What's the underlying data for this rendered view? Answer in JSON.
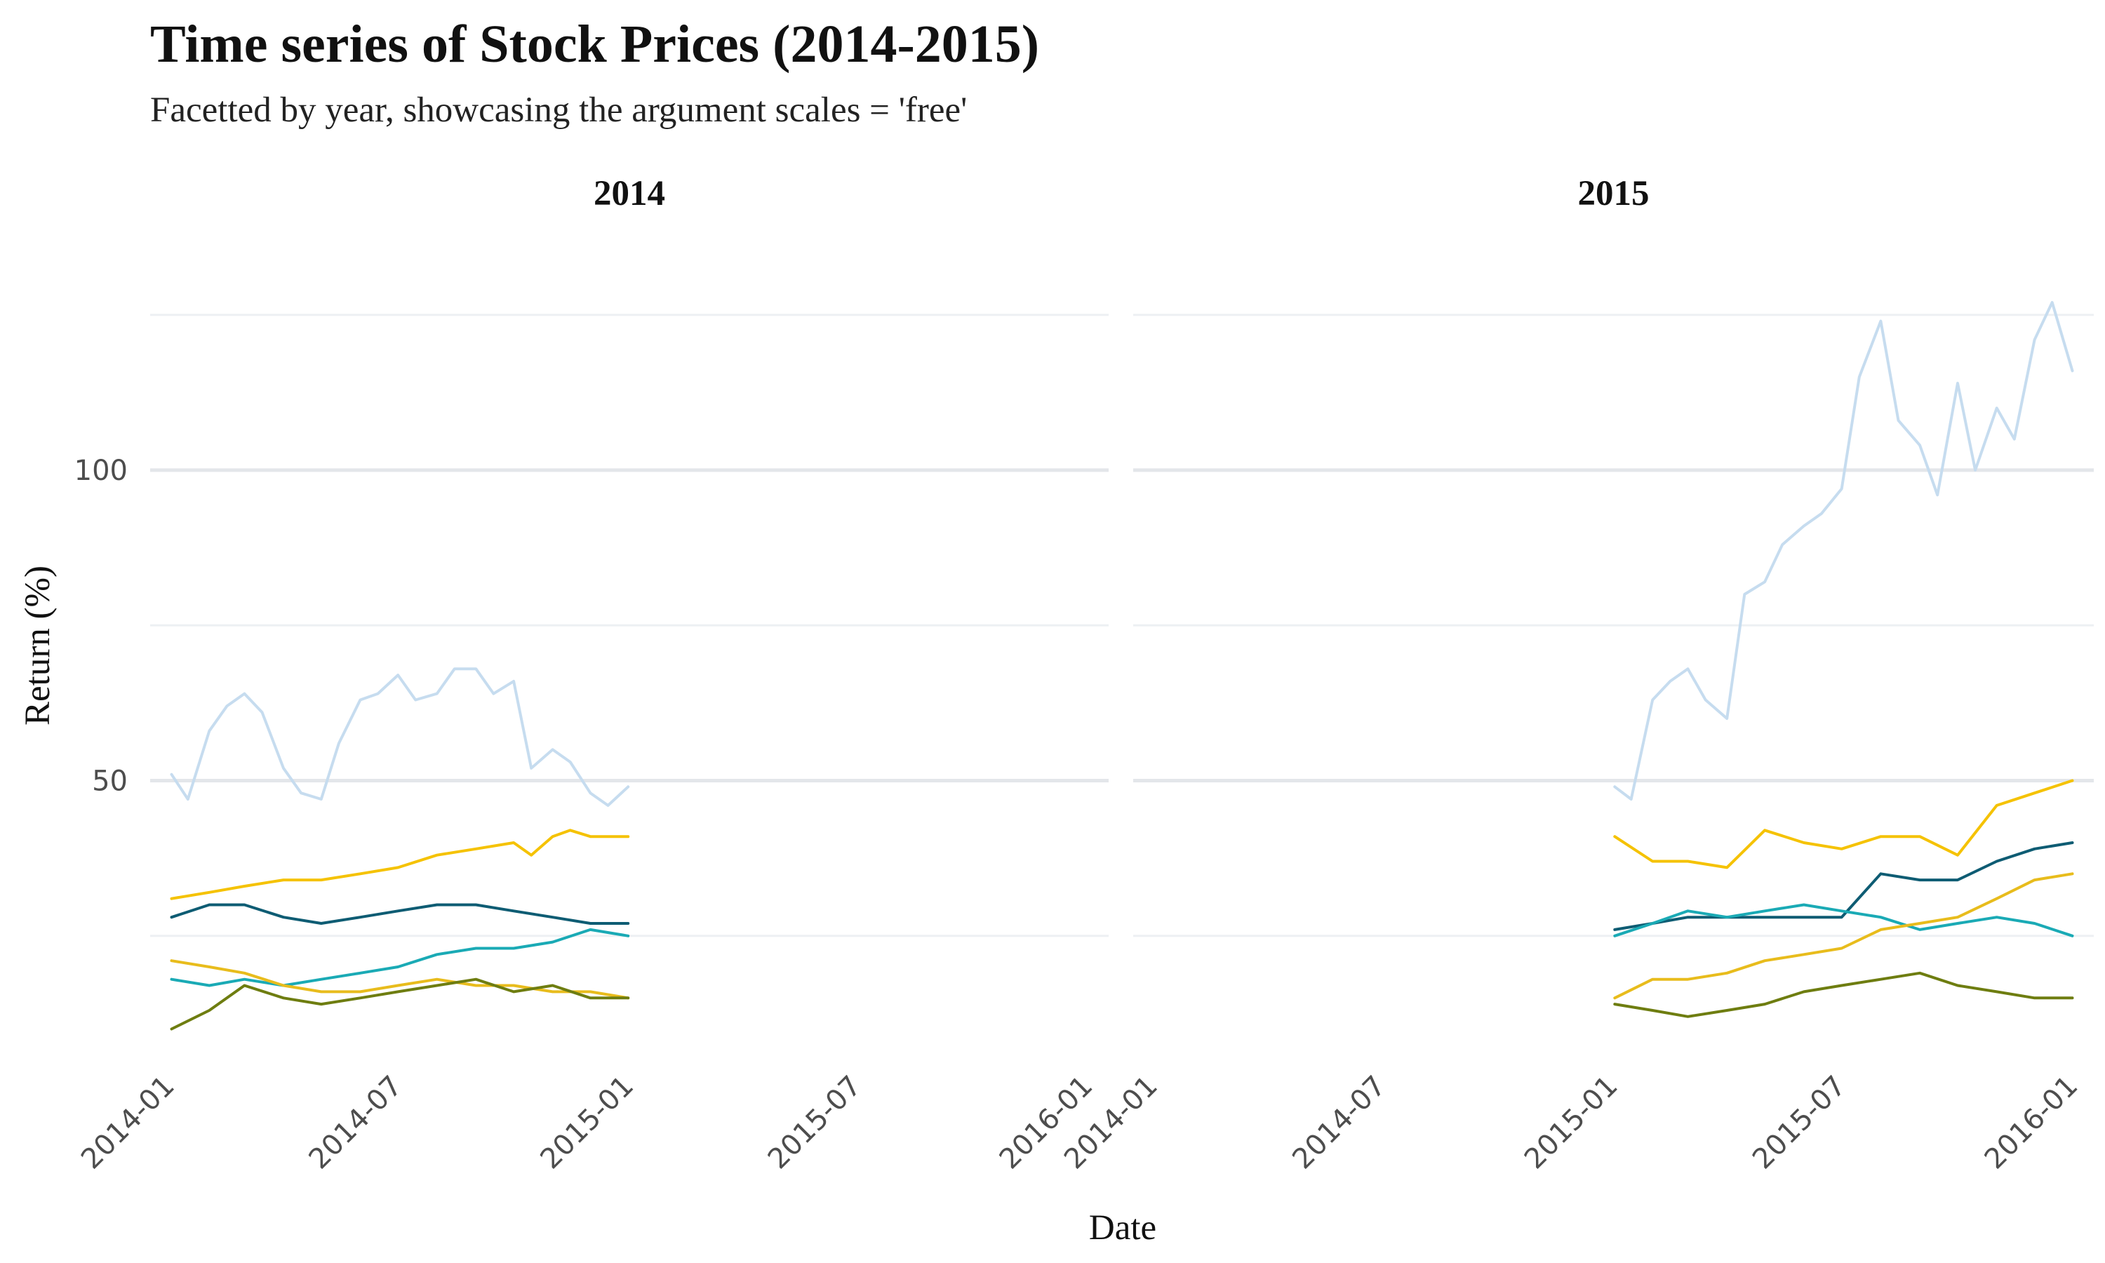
{
  "chart_data": {
    "type": "line",
    "title": "Time series of Stock Prices (2014-2015)",
    "subtitle": "Facetted by year, showcasing the argument scales = 'free'",
    "xlabel": "Date",
    "ylabel": "Return (%)",
    "ylim": [
      0,
      130
    ],
    "y_ticks": [
      50,
      100
    ],
    "grid": true,
    "legend": "none",
    "x_ticks": [
      "2014-01",
      "2014-07",
      "2015-01",
      "2015-07",
      "2016-01"
    ],
    "facets": [
      {
        "label": "2014",
        "series": [
          {
            "color": "#c6dcef",
            "x": [
              "2014-01-02",
              "2014-01-15",
              "2014-02-01",
              "2014-02-15",
              "2014-03-01",
              "2014-03-15",
              "2014-04-01",
              "2014-04-15",
              "2014-05-01",
              "2014-05-15",
              "2014-06-01",
              "2014-06-15",
              "2014-07-01",
              "2014-07-15",
              "2014-08-01",
              "2014-08-15",
              "2014-09-01",
              "2014-09-15",
              "2014-10-01",
              "2014-10-15",
              "2014-11-01",
              "2014-11-15",
              "2014-12-01",
              "2014-12-15",
              "2014-12-31"
            ],
            "y": [
              51,
              47,
              58,
              62,
              64,
              61,
              52,
              48,
              47,
              56,
              63,
              64,
              67,
              63,
              64,
              68,
              68,
              64,
              66,
              52,
              55,
              53,
              48,
              46,
              49
            ]
          },
          {
            "color": "#f5c200",
            "x": [
              "2014-01-02",
              "2014-02-01",
              "2014-03-01",
              "2014-04-01",
              "2014-05-01",
              "2014-06-01",
              "2014-07-01",
              "2014-08-01",
              "2014-09-01",
              "2014-10-01",
              "2014-10-15",
              "2014-11-01",
              "2014-11-15",
              "2014-12-01",
              "2014-12-15",
              "2014-12-31"
            ],
            "y": [
              31,
              32,
              33,
              34,
              34,
              35,
              36,
              38,
              39,
              40,
              38,
              41,
              42,
              41,
              41,
              41
            ]
          },
          {
            "color": "#0e5c73",
            "x": [
              "2014-01-02",
              "2014-02-01",
              "2014-03-01",
              "2014-04-01",
              "2014-05-01",
              "2014-06-01",
              "2014-07-01",
              "2014-08-01",
              "2014-09-01",
              "2014-10-01",
              "2014-11-01",
              "2014-12-01",
              "2014-12-31"
            ],
            "y": [
              28,
              30,
              30,
              28,
              27,
              28,
              29,
              30,
              30,
              29,
              28,
              27,
              27
            ]
          },
          {
            "color": "#1aaab5",
            "x": [
              "2014-01-02",
              "2014-02-01",
              "2014-03-01",
              "2014-04-01",
              "2014-05-01",
              "2014-06-01",
              "2014-07-01",
              "2014-08-01",
              "2014-09-01",
              "2014-10-01",
              "2014-11-01",
              "2014-12-01",
              "2014-12-31"
            ],
            "y": [
              18,
              17,
              18,
              17,
              18,
              19,
              20,
              22,
              23,
              23,
              24,
              26,
              25
            ]
          },
          {
            "color": "#e8bc1c",
            "x": [
              "2014-01-02",
              "2014-02-01",
              "2014-03-01",
              "2014-04-01",
              "2014-05-01",
              "2014-06-01",
              "2014-07-01",
              "2014-08-01",
              "2014-09-01",
              "2014-10-01",
              "2014-11-01",
              "2014-12-01",
              "2014-12-31"
            ],
            "y": [
              21,
              20,
              19,
              17,
              16,
              16,
              17,
              18,
              17,
              17,
              16,
              16,
              15
            ]
          },
          {
            "color": "#6e7d10",
            "x": [
              "2014-01-02",
              "2014-02-01",
              "2014-03-01",
              "2014-04-01",
              "2014-05-01",
              "2014-06-01",
              "2014-07-01",
              "2014-08-01",
              "2014-09-01",
              "2014-10-01",
              "2014-11-01",
              "2014-12-01",
              "2014-12-31"
            ],
            "y": [
              10,
              13,
              17,
              15,
              14,
              15,
              16,
              17,
              18,
              16,
              17,
              15,
              15
            ]
          }
        ]
      },
      {
        "label": "2015",
        "series": [
          {
            "color": "#c6dcef",
            "x": [
              "2015-01-02",
              "2015-01-15",
              "2015-02-01",
              "2015-02-15",
              "2015-03-01",
              "2015-03-15",
              "2015-04-01",
              "2015-04-15",
              "2015-05-01",
              "2015-05-15",
              "2015-06-01",
              "2015-06-15",
              "2015-07-01",
              "2015-07-15",
              "2015-08-01",
              "2015-08-15",
              "2015-09-01",
              "2015-09-15",
              "2015-10-01",
              "2015-10-15",
              "2015-11-01",
              "2015-11-15",
              "2015-12-01",
              "2015-12-15",
              "2015-12-31"
            ],
            "y": [
              49,
              47,
              63,
              66,
              68,
              63,
              60,
              80,
              82,
              88,
              91,
              93,
              97,
              115,
              124,
              108,
              104,
              96,
              114,
              100,
              110,
              105,
              121,
              127,
              116
            ]
          },
          {
            "color": "#f5c200",
            "x": [
              "2015-01-02",
              "2015-02-01",
              "2015-03-01",
              "2015-04-01",
              "2015-05-01",
              "2015-06-01",
              "2015-07-01",
              "2015-08-01",
              "2015-09-01",
              "2015-10-01",
              "2015-11-01",
              "2015-12-01",
              "2015-12-31"
            ],
            "y": [
              41,
              37,
              37,
              36,
              42,
              40,
              39,
              41,
              41,
              38,
              46,
              48,
              50
            ]
          },
          {
            "color": "#0e5c73",
            "x": [
              "2015-01-02",
              "2015-02-01",
              "2015-03-01",
              "2015-04-01",
              "2015-05-01",
              "2015-06-01",
              "2015-07-01",
              "2015-08-01",
              "2015-09-01",
              "2015-10-01",
              "2015-11-01",
              "2015-12-01",
              "2015-12-31"
            ],
            "y": [
              26,
              27,
              28,
              28,
              28,
              28,
              28,
              35,
              34,
              34,
              37,
              39,
              40
            ]
          },
          {
            "color": "#1aaab5",
            "x": [
              "2015-01-02",
              "2015-02-01",
              "2015-03-01",
              "2015-04-01",
              "2015-05-01",
              "2015-06-01",
              "2015-07-01",
              "2015-08-01",
              "2015-09-01",
              "2015-10-01",
              "2015-11-01",
              "2015-12-01",
              "2015-12-31"
            ],
            "y": [
              25,
              27,
              29,
              28,
              29,
              30,
              29,
              28,
              26,
              27,
              28,
              27,
              25
            ]
          },
          {
            "color": "#e8bc1c",
            "x": [
              "2015-01-02",
              "2015-02-01",
              "2015-03-01",
              "2015-04-01",
              "2015-05-01",
              "2015-06-01",
              "2015-07-01",
              "2015-08-01",
              "2015-09-01",
              "2015-10-01",
              "2015-11-01",
              "2015-12-01",
              "2015-12-31"
            ],
            "y": [
              15,
              18,
              18,
              19,
              21,
              22,
              23,
              26,
              27,
              28,
              31,
              34,
              35
            ]
          },
          {
            "color": "#6e7d10",
            "x": [
              "2015-01-02",
              "2015-02-01",
              "2015-03-01",
              "2015-04-01",
              "2015-05-01",
              "2015-06-01",
              "2015-07-01",
              "2015-08-01",
              "2015-09-01",
              "2015-10-01",
              "2015-11-01",
              "2015-12-01",
              "2015-12-31"
            ],
            "y": [
              14,
              13,
              12,
              13,
              14,
              16,
              17,
              18,
              19,
              17,
              16,
              15,
              15
            ]
          }
        ]
      }
    ]
  }
}
